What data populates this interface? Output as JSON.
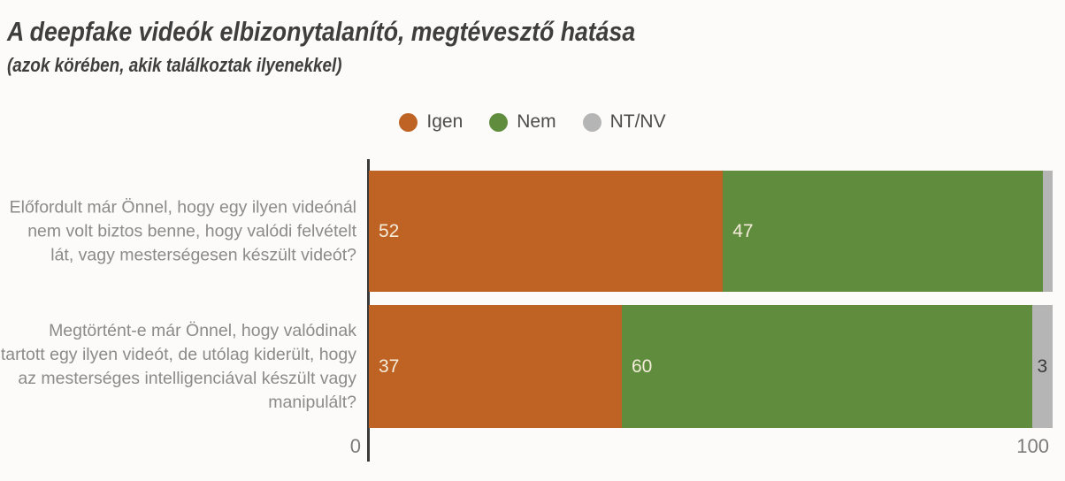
{
  "title": "A deepfake videók elbizonytalanító, megtévesztő hatása",
  "subtitle": "(azok körében, akik találkoztak ilyenekkel)",
  "colors": {
    "igen": "#bf6325",
    "nem": "#5f8c3d",
    "ntnv": "#b5b5b5",
    "axis": "#3a3a3a",
    "value_label_light": "#f4ecd9",
    "value_label_dark": "#3a3a3a"
  },
  "legend": {
    "items": [
      {
        "label": "Igen",
        "color": "#bf6325"
      },
      {
        "label": "Nem",
        "color": "#5f8c3d"
      },
      {
        "label": "NT/NV",
        "color": "#b5b5b5"
      }
    ]
  },
  "axis": {
    "x_ticks": [
      "0",
      "100"
    ]
  },
  "chart_data": {
    "type": "bar",
    "orientation": "horizontal",
    "stacked": true,
    "title": "A deepfake videók elbizonytalanító, megtévesztő hatása",
    "subtitle": "(azok körében, akik találkoztak ilyenekkel)",
    "xlim": [
      0,
      100
    ],
    "x_tick_labels": [
      "0",
      "100"
    ],
    "legend_position": "top-center",
    "grid": false,
    "categories": [
      "Előfordult már Önnel, hogy egy ilyen videónál nem volt biztos benne, hogy valódi felvételt lát, vagy mesterségesen készült videót?",
      "Megtörtént-e már Önnel, hogy valódinak tartott egy ilyen videót, de utólag kiderült, hogy az mesterséges intelligenciával készült vagy manipulált?"
    ],
    "series": [
      {
        "name": "Igen",
        "color": "#bf6325",
        "values": [
          52,
          37
        ]
      },
      {
        "name": "Nem",
        "color": "#5f8c3d",
        "values": [
          47,
          60
        ]
      },
      {
        "name": "NT/NV",
        "color": "#b5b5b5",
        "values": [
          1,
          3
        ]
      }
    ],
    "segment_labels": [
      [
        "52",
        "47",
        ""
      ],
      [
        "37",
        "60",
        "3"
      ]
    ]
  }
}
